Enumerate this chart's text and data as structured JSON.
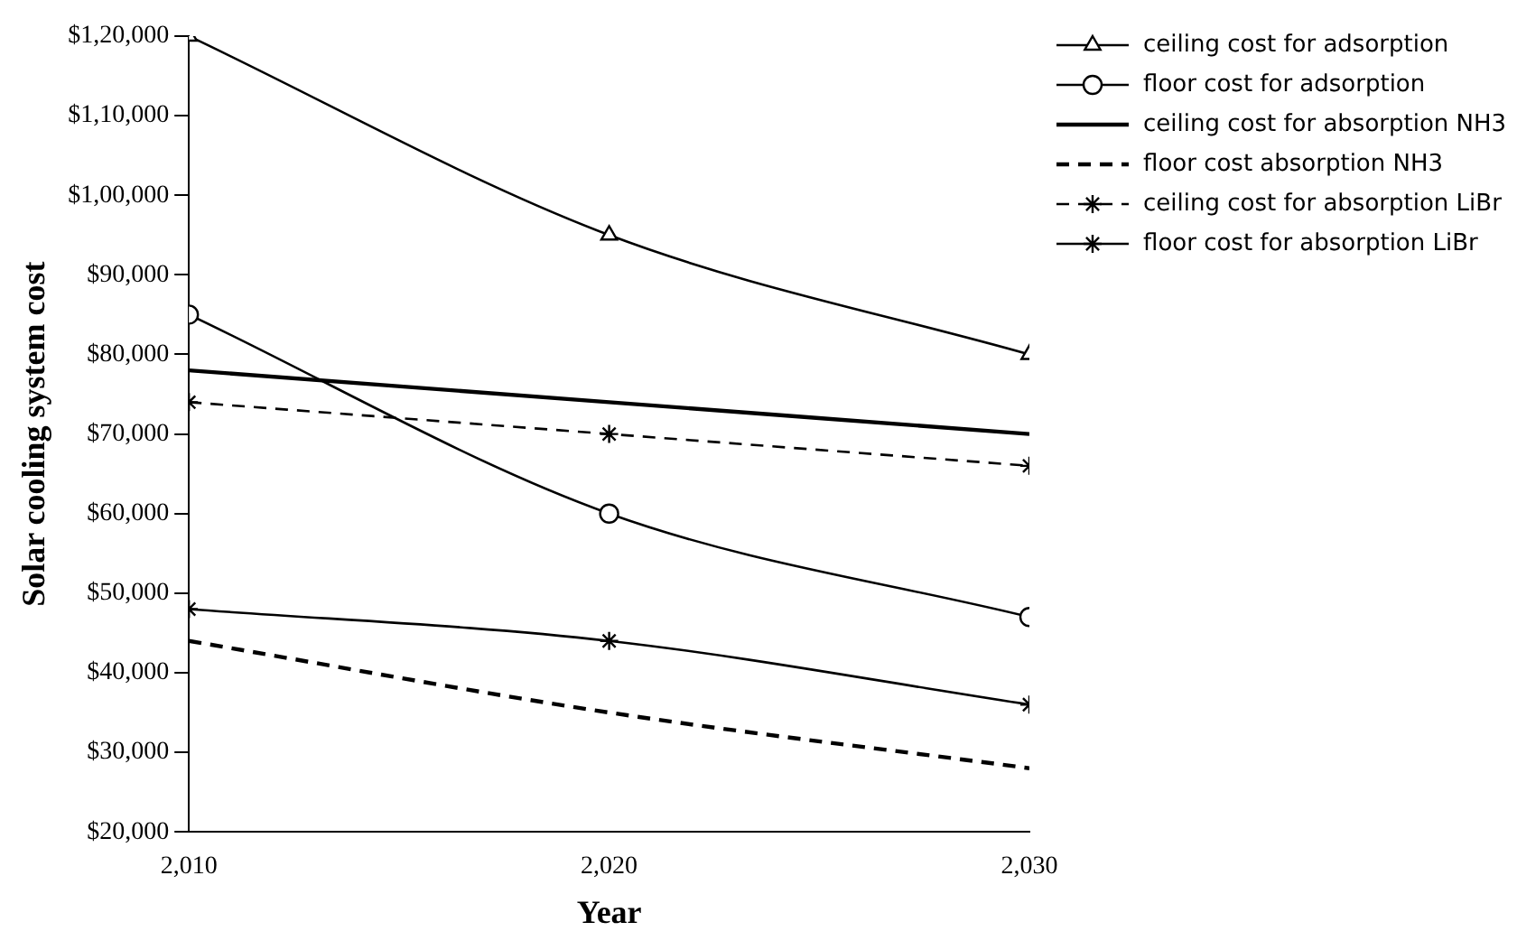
{
  "chart_data": {
    "type": "line",
    "xlabel": "Year",
    "ylabel": "Solar cooling system cost",
    "x": [
      2010,
      2020,
      2030
    ],
    "xlim": [
      2010,
      2030
    ],
    "xticks": [
      {
        "value": 2010,
        "label": "2,010"
      },
      {
        "value": 2020,
        "label": "2,020"
      },
      {
        "value": 2030,
        "label": "2,030"
      }
    ],
    "ylim": [
      20000,
      120000
    ],
    "yticks": [
      {
        "value": 20000,
        "label": "$20,000"
      },
      {
        "value": 30000,
        "label": "$30,000"
      },
      {
        "value": 40000,
        "label": "$40,000"
      },
      {
        "value": 50000,
        "label": "$50,000"
      },
      {
        "value": 60000,
        "label": "$60,000"
      },
      {
        "value": 70000,
        "label": "$70,000"
      },
      {
        "value": 80000,
        "label": "$80,000"
      },
      {
        "value": 90000,
        "label": "$90,000"
      },
      {
        "value": 100000,
        "label": "$1,00,000"
      },
      {
        "value": 110000,
        "label": "$1,10,000"
      },
      {
        "value": 120000,
        "label": "$1,20,000"
      }
    ],
    "grid": false,
    "legend": "right",
    "series": [
      {
        "name": "ceiling cost for adsorption",
        "color": "#000000",
        "values": [
          120000,
          95000,
          80000
        ],
        "marker": "triangle",
        "line_style": "solid"
      },
      {
        "name": "floor cost for adsorption",
        "color": "#000000",
        "values": [
          85000,
          60000,
          47000
        ],
        "marker": "circle",
        "line_style": "solid"
      },
      {
        "name": "ceiling cost for absorption NH3",
        "color": "#000000",
        "values": [
          78000,
          74000,
          70000
        ],
        "marker": "none",
        "line_style": "solid"
      },
      {
        "name": "floor cost absorption NH3",
        "color": "#000000",
        "values": [
          44000,
          35000,
          28000
        ],
        "marker": "none",
        "line_style": "dashed"
      },
      {
        "name": "ceiling cost for absorption LiBr",
        "color": "#000000",
        "values": [
          74000,
          70000,
          66000
        ],
        "marker": "cross",
        "line_style": "dashed"
      },
      {
        "name": "floor cost for absorption LiBr",
        "color": "#000000",
        "values": [
          48000,
          44000,
          36000
        ],
        "marker": "cross",
        "line_style": "solid"
      }
    ]
  }
}
